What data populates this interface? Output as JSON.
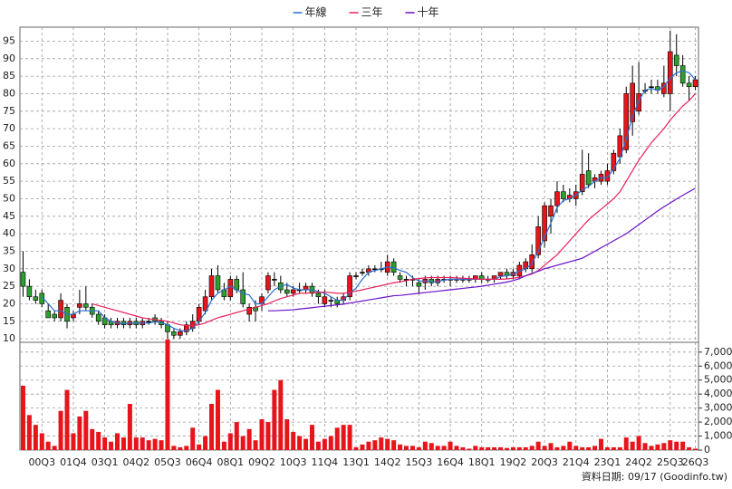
{
  "chart_data": {
    "type": "candlestick",
    "legend": "top",
    "grid": true,
    "up_color": "#e8141b",
    "down_color": "#2ea02e",
    "ylim": [
      9,
      99
    ],
    "yticks": [
      10,
      15,
      20,
      25,
      30,
      35,
      40,
      45,
      50,
      55,
      60,
      65,
      70,
      75,
      80,
      85,
      90,
      95
    ],
    "categories": [
      null,
      null,
      null,
      "00Q3",
      null,
      null,
      null,
      null,
      "01Q4",
      null,
      null,
      null,
      null,
      "03Q1",
      null,
      null,
      null,
      null,
      "04Q2",
      null,
      null,
      null,
      null,
      "05Q3",
      null,
      null,
      null,
      null,
      "06Q4",
      null,
      null,
      null,
      null,
      "08Q1",
      null,
      null,
      null,
      null,
      "09Q2",
      null,
      null,
      null,
      null,
      "10Q3",
      null,
      null,
      null,
      null,
      "11Q4",
      null,
      null,
      null,
      null,
      "13Q1",
      null,
      null,
      null,
      null,
      "14Q2",
      null,
      null,
      null,
      null,
      "15Q3",
      null,
      null,
      null,
      null,
      "16Q4",
      null,
      null,
      null,
      null,
      "18Q1",
      null,
      null,
      null,
      null,
      "19Q2",
      null,
      null,
      null,
      null,
      "20Q3",
      null,
      null,
      null,
      null,
      "21Q4",
      null,
      null,
      null,
      null,
      "23Q1",
      null,
      null,
      null,
      null,
      "24Q2",
      null,
      null,
      null,
      null,
      "25Q3",
      null,
      null,
      null,
      "26Q3"
    ],
    "open": [
      29,
      25,
      22,
      23,
      18,
      17,
      16,
      19,
      16,
      19,
      20,
      19,
      17,
      16,
      15,
      14,
      15,
      14,
      15,
      14,
      15,
      16,
      15,
      14,
      12,
      11,
      12,
      13,
      15,
      18,
      22,
      28,
      24,
      22,
      27,
      24,
      17,
      19,
      20,
      24,
      27,
      26,
      24,
      23,
      24,
      24,
      25,
      23,
      20,
      21,
      21,
      21,
      22,
      28,
      29,
      29,
      30,
      30,
      29,
      32,
      28,
      27,
      27,
      26,
      26,
      27,
      26,
      27,
      27,
      27,
      27,
      27,
      27,
      28,
      27,
      27,
      28,
      29,
      28,
      28,
      30,
      30,
      34,
      38,
      45,
      48,
      52,
      50,
      50,
      52,
      58,
      55,
      55,
      55,
      58,
      62,
      64,
      72,
      75,
      81,
      82,
      82,
      80,
      80,
      91,
      88,
      83,
      82
    ],
    "high": [
      35,
      27,
      24,
      24,
      20,
      18,
      23,
      20,
      18,
      24,
      25,
      20,
      18,
      17,
      16,
      16,
      16,
      16,
      16,
      16,
      16,
      17,
      16,
      15,
      13,
      13,
      15,
      17,
      20,
      24,
      30,
      31,
      26,
      28,
      28,
      29,
      20,
      21,
      23,
      29,
      29,
      28,
      26,
      25,
      26,
      26,
      26,
      24,
      24,
      22,
      22,
      23,
      29,
      29,
      30,
      31,
      31,
      32,
      34,
      33,
      29,
      28,
      28,
      27,
      28,
      28,
      28,
      28,
      28,
      28,
      28,
      28,
      28,
      29,
      28,
      28,
      29,
      30,
      30,
      32,
      33,
      37,
      45,
      49,
      50,
      55,
      54,
      53,
      54,
      64,
      63,
      57,
      58,
      60,
      64,
      70,
      82,
      88,
      89,
      83,
      84,
      84,
      88,
      98,
      97,
      91,
      85,
      85
    ],
    "low": [
      22,
      21,
      20,
      19,
      16,
      15,
      15,
      13,
      15,
      17,
      18,
      16,
      14,
      13,
      13,
      13,
      13,
      13,
      13,
      13,
      14,
      14,
      13,
      10,
      10,
      10,
      11,
      12,
      14,
      17,
      21,
      23,
      21,
      21,
      23,
      19,
      15,
      15,
      18,
      23,
      25,
      23,
      22,
      22,
      23,
      23,
      22,
      20,
      19,
      19,
      19,
      20,
      21,
      27,
      28,
      28,
      29,
      29,
      28,
      28,
      26,
      25,
      25,
      23,
      24,
      25,
      25,
      26,
      25,
      26,
      26,
      26,
      26,
      26,
      26,
      26,
      27,
      27,
      27,
      27,
      29,
      29,
      33,
      36,
      40,
      46,
      49,
      49,
      48,
      51,
      53,
      53,
      54,
      54,
      57,
      60,
      63,
      68,
      74,
      80,
      80,
      80,
      79,
      75,
      85,
      82,
      78,
      81
    ],
    "close": [
      25,
      22,
      21,
      20,
      16,
      16,
      21,
      15,
      17,
      20,
      19,
      17,
      15,
      14,
      14,
      15,
      14,
      15,
      14,
      15,
      15,
      15,
      14,
      12,
      11,
      12,
      14,
      15,
      19,
      22,
      28,
      24,
      22,
      27,
      24,
      20,
      19,
      18,
      22,
      28,
      27,
      24,
      23,
      24,
      24,
      25,
      23,
      22,
      22,
      21,
      20,
      22,
      28,
      28,
      29,
      30,
      30,
      30,
      32,
      29,
      27,
      27,
      27,
      25,
      27,
      26,
      27,
      27,
      27,
      27,
      27,
      27,
      28,
      27,
      27,
      28,
      29,
      28,
      29,
      31,
      32,
      34,
      42,
      48,
      48,
      52,
      50,
      51,
      52,
      57,
      54,
      56,
      57,
      58,
      63,
      68,
      80,
      83,
      80,
      81,
      82,
      81,
      83,
      92,
      88,
      83,
      82,
      84
    ],
    "series": [
      {
        "name": "年線",
        "color": "#2a6fd0",
        "values": [
          null,
          null,
          null,
          22,
          20,
          18,
          18,
          17,
          17,
          18,
          18,
          18,
          18,
          16,
          15,
          14.5,
          14.3,
          14.5,
          14.5,
          14.5,
          14.5,
          14.8,
          14.7,
          14,
          13,
          12.3,
          12.3,
          13,
          15,
          17.5,
          21,
          23,
          24,
          25,
          24,
          23,
          22.5,
          20,
          20,
          22,
          24,
          25,
          25.5,
          24.5,
          24,
          24,
          24,
          23.5,
          23,
          22,
          21,
          21,
          23,
          24.5,
          27,
          29,
          29.5,
          30,
          30.5,
          30.3,
          29.5,
          29,
          27.5,
          26.5,
          26.5,
          26.3,
          26.3,
          26.8,
          27,
          27,
          27,
          27,
          27,
          27,
          27,
          27,
          27.8,
          28,
          28.5,
          29.3,
          30,
          31.5,
          35,
          39,
          43,
          47.5,
          49.5,
          50,
          51,
          52.5,
          53.5,
          55,
          56,
          56,
          58.5,
          61.5,
          67,
          73.5,
          78,
          81,
          81.5,
          81,
          82,
          84.5,
          86,
          86.5,
          86,
          84
        ]
      },
      {
        "name": "三年",
        "color": "#e8205a",
        "values": [
          null,
          null,
          null,
          null,
          null,
          null,
          null,
          null,
          null,
          null,
          null,
          20,
          19.5,
          19,
          18.5,
          18,
          17.5,
          17,
          16.5,
          16,
          15.7,
          15.5,
          15.2,
          15,
          14.5,
          14,
          13.8,
          13.8,
          14,
          14.5,
          15.3,
          16,
          16.5,
          17,
          17.5,
          18,
          18.5,
          19,
          19.5,
          20,
          20.8,
          21.5,
          22,
          22.5,
          23,
          23,
          23.2,
          23.3,
          23.3,
          23.2,
          23,
          23,
          23.3,
          23.6,
          24,
          24.4,
          24.8,
          25.2,
          25.6,
          26,
          26.3,
          26.6,
          27,
          27.2,
          27.4,
          27.5,
          27.5,
          27.5,
          27.5,
          27.4,
          27.3,
          27.2,
          27.1,
          27,
          27,
          27,
          27,
          27.1,
          27.3,
          27.6,
          28,
          28.5,
          29.5,
          31,
          32.5,
          34,
          36,
          38,
          40,
          42,
          44,
          45.5,
          47,
          48.5,
          50,
          52,
          55,
          58,
          61,
          63.5,
          66,
          68,
          70,
          72.5,
          74.5,
          76.5,
          78,
          80
        ]
      },
      {
        "name": "十年",
        "color": "#6a10c8",
        "values": [
          null,
          null,
          null,
          null,
          null,
          null,
          null,
          null,
          null,
          null,
          null,
          null,
          null,
          null,
          null,
          null,
          null,
          null,
          null,
          null,
          null,
          null,
          null,
          null,
          null,
          null,
          null,
          null,
          null,
          null,
          null,
          null,
          null,
          null,
          null,
          null,
          null,
          null,
          null,
          18,
          18,
          18.1,
          18.2,
          18.3,
          18.5,
          18.7,
          18.9,
          19.1,
          19.3,
          19.5,
          19.7,
          19.9,
          20.2,
          20.5,
          20.8,
          21.1,
          21.4,
          21.7,
          22,
          22.3,
          22.4,
          22.6,
          22.8,
          23,
          23.2,
          23.4,
          23.6,
          23.8,
          24,
          24.2,
          24.4,
          24.6,
          24.8,
          25,
          25.3,
          25.6,
          25.9,
          26.2,
          26.6,
          27.2,
          28,
          28.7,
          29.3,
          30,
          30.5,
          31,
          31.5,
          32,
          32.5,
          33,
          34,
          35,
          36,
          37,
          38,
          39,
          40,
          41.3,
          42.6,
          43.9,
          45.2,
          46.5,
          47.7,
          48.8,
          49.9,
          51,
          52,
          53
        ]
      }
    ],
    "volume": {
      "color": "#e8141b",
      "ylim": [
        0,
        7700
      ],
      "yticks": [
        0,
        {
          "value": 1000,
          "label": "1,000"
        },
        {
          "value": 2000,
          "label": "2,000"
        },
        {
          "value": 3000,
          "label": "3,000"
        },
        {
          "value": 4000,
          "label": "4,000"
        },
        {
          "value": 5000,
          "label": "5,000"
        },
        {
          "value": 6000,
          "label": "6,000"
        },
        {
          "value": 7000,
          "label": "7,000"
        }
      ],
      "values": [
        4600,
        2500,
        1800,
        1200,
        600,
        300,
        2800,
        4300,
        1200,
        2400,
        2800,
        1500,
        1300,
        900,
        600,
        1200,
        900,
        3300,
        900,
        900,
        700,
        800,
        700,
        7900,
        300,
        200,
        300,
        1600,
        400,
        1000,
        3300,
        4300,
        600,
        1200,
        2000,
        1000,
        1500,
        700,
        2200,
        2000,
        4300,
        5000,
        2200,
        1300,
        1000,
        800,
        1800,
        600,
        800,
        1000,
        1600,
        1800,
        1800,
        200,
        400,
        600,
        700,
        900,
        800,
        700,
        400,
        300,
        300,
        200,
        600,
        500,
        300,
        300,
        600,
        300,
        200,
        100,
        300,
        200,
        200,
        200,
        200,
        150,
        200,
        200,
        200,
        300,
        600,
        300,
        500,
        200,
        300,
        600,
        300,
        200,
        200,
        300,
        800,
        200,
        200,
        200,
        900,
        600,
        1000,
        500,
        300,
        400,
        500,
        700,
        600,
        600,
        200,
        100
      ]
    },
    "footnote": "資料日期: 09/17  (Goodinfo.tw)"
  }
}
